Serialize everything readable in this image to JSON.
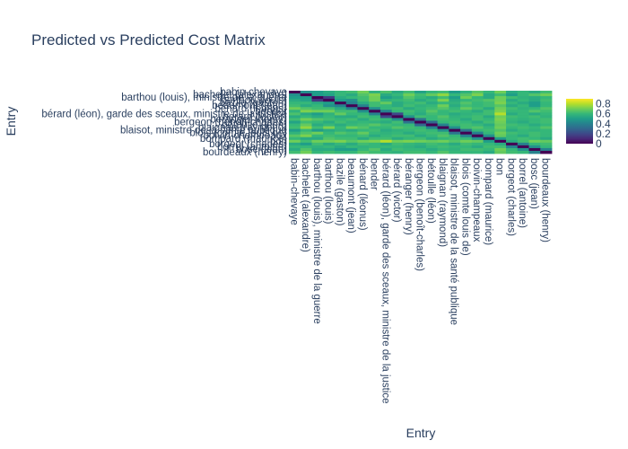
{
  "chart_data": {
    "type": "heatmap",
    "title": "Predicted vs Predicted Cost Matrix",
    "xlabel": "Entry",
    "ylabel": "Entry",
    "colorscale": "viridis",
    "zrange": [
      0,
      0.9
    ],
    "colorbar_ticks": [
      0,
      0.2,
      0.4,
      0.6,
      0.8
    ],
    "categories": [
      "babin-chevaye",
      "bachelet (alexandre)",
      "barthou (louis), ministre de la guerre",
      "barthou (louis)",
      "bazile (gaston)",
      "beaumont (jean)",
      "bénard (léonus)",
      "bender",
      "bérard (léon), garde des sceaux, ministre de la justice",
      "bérard (victor)",
      "béranger (henry)",
      "bergeon (benoît-charles)",
      "bétoulle (léon)",
      "blaignan (raymond)",
      "blaisot, ministre de la santé publique",
      "blois (comte louis de)",
      "boivin-champeaux",
      "bompard (maurice)",
      "bon",
      "borgeot (charles)",
      "borrel (antoine)",
      "bosc (jean)",
      "bourdeaux (henry)"
    ],
    "z": [
      [
        0,
        0.45,
        0.5,
        0.55,
        0.6,
        0.62,
        0.7,
        0.58,
        0.64,
        0.55,
        0.62,
        0.52,
        0.6,
        0.62,
        0.5,
        0.58,
        0.66,
        0.6,
        0.7,
        0.55,
        0.6,
        0.55,
        0.62
      ],
      [
        0.45,
        0,
        0.5,
        0.52,
        0.6,
        0.55,
        0.65,
        0.72,
        0.55,
        0.6,
        0.7,
        0.62,
        0.68,
        0.75,
        0.6,
        0.65,
        0.72,
        0.55,
        0.62,
        0.5,
        0.6,
        0.65,
        0.7
      ],
      [
        0.5,
        0.5,
        0,
        0.15,
        0.55,
        0.6,
        0.62,
        0.7,
        0.5,
        0.55,
        0.65,
        0.6,
        0.55,
        0.62,
        0.5,
        0.7,
        0.6,
        0.55,
        0.7,
        0.62,
        0.58,
        0.55,
        0.6
      ],
      [
        0.55,
        0.52,
        0.15,
        0,
        0.5,
        0.45,
        0.62,
        0.7,
        0.58,
        0.6,
        0.62,
        0.55,
        0.6,
        0.72,
        0.55,
        0.6,
        0.62,
        0.65,
        0.7,
        0.55,
        0.6,
        0.55,
        0.62
      ],
      [
        0.6,
        0.6,
        0.55,
        0.5,
        0,
        0.4,
        0.55,
        0.62,
        0.68,
        0.55,
        0.6,
        0.62,
        0.55,
        0.6,
        0.58,
        0.65,
        0.6,
        0.62,
        0.72,
        0.6,
        0.55,
        0.5,
        0.6
      ],
      [
        0.62,
        0.55,
        0.6,
        0.45,
        0.4,
        0,
        0.4,
        0.62,
        0.6,
        0.55,
        0.62,
        0.58,
        0.6,
        0.7,
        0.55,
        0.62,
        0.6,
        0.62,
        0.66,
        0.55,
        0.6,
        0.5,
        0.6
      ],
      [
        0.7,
        0.65,
        0.62,
        0.62,
        0.55,
        0.4,
        0,
        0.45,
        0.6,
        0.62,
        0.55,
        0.6,
        0.62,
        0.65,
        0.6,
        0.68,
        0.62,
        0.55,
        0.7,
        0.62,
        0.58,
        0.6,
        0.65
      ],
      [
        0.58,
        0.72,
        0.7,
        0.7,
        0.62,
        0.62,
        0.45,
        0,
        0.4,
        0.6,
        0.62,
        0.58,
        0.66,
        0.6,
        0.62,
        0.6,
        0.55,
        0.62,
        0.72,
        0.6,
        0.6,
        0.65,
        0.62
      ],
      [
        0.64,
        0.55,
        0.5,
        0.58,
        0.68,
        0.6,
        0.6,
        0.4,
        0,
        0.2,
        0.6,
        0.55,
        0.62,
        0.6,
        0.55,
        0.58,
        0.6,
        0.62,
        0.8,
        0.55,
        0.6,
        0.55,
        0.6
      ],
      [
        0.55,
        0.6,
        0.55,
        0.6,
        0.55,
        0.55,
        0.62,
        0.6,
        0.2,
        0,
        0.45,
        0.62,
        0.6,
        0.65,
        0.58,
        0.6,
        0.62,
        0.55,
        0.7,
        0.62,
        0.6,
        0.62,
        0.58
      ],
      [
        0.62,
        0.7,
        0.65,
        0.62,
        0.6,
        0.62,
        0.55,
        0.62,
        0.6,
        0.45,
        0,
        0.35,
        0.6,
        0.62,
        0.6,
        0.55,
        0.62,
        0.6,
        0.72,
        0.6,
        0.58,
        0.6,
        0.62
      ],
      [
        0.52,
        0.62,
        0.6,
        0.55,
        0.62,
        0.58,
        0.6,
        0.58,
        0.55,
        0.62,
        0.35,
        0,
        0.3,
        0.6,
        0.62,
        0.6,
        0.55,
        0.62,
        0.7,
        0.58,
        0.55,
        0.6,
        0.62
      ],
      [
        0.6,
        0.68,
        0.55,
        0.6,
        0.55,
        0.6,
        0.62,
        0.66,
        0.62,
        0.6,
        0.6,
        0.3,
        0,
        0.4,
        0.6,
        0.62,
        0.6,
        0.55,
        0.68,
        0.62,
        0.6,
        0.55,
        0.6
      ],
      [
        0.62,
        0.75,
        0.62,
        0.72,
        0.6,
        0.7,
        0.65,
        0.6,
        0.6,
        0.65,
        0.62,
        0.6,
        0.4,
        0,
        0.45,
        0.62,
        0.65,
        0.6,
        0.7,
        0.6,
        0.62,
        0.6,
        0.65
      ],
      [
        0.5,
        0.6,
        0.5,
        0.55,
        0.58,
        0.55,
        0.6,
        0.62,
        0.55,
        0.58,
        0.6,
        0.62,
        0.6,
        0.45,
        0,
        0.35,
        0.6,
        0.62,
        0.65,
        0.55,
        0.6,
        0.58,
        0.6
      ],
      [
        0.58,
        0.65,
        0.7,
        0.6,
        0.65,
        0.62,
        0.68,
        0.6,
        0.58,
        0.6,
        0.55,
        0.6,
        0.62,
        0.62,
        0.35,
        0,
        0.4,
        0.6,
        0.7,
        0.62,
        0.6,
        0.62,
        0.6
      ],
      [
        0.66,
        0.72,
        0.6,
        0.62,
        0.6,
        0.6,
        0.62,
        0.55,
        0.6,
        0.62,
        0.62,
        0.55,
        0.6,
        0.65,
        0.6,
        0.4,
        0,
        0.45,
        0.68,
        0.6,
        0.55,
        0.62,
        0.6
      ],
      [
        0.6,
        0.55,
        0.55,
        0.65,
        0.62,
        0.62,
        0.55,
        0.62,
        0.62,
        0.55,
        0.6,
        0.62,
        0.55,
        0.6,
        0.62,
        0.6,
        0.45,
        0,
        0.5,
        0.6,
        0.62,
        0.6,
        0.55
      ],
      [
        0.7,
        0.62,
        0.7,
        0.7,
        0.72,
        0.66,
        0.7,
        0.72,
        0.8,
        0.7,
        0.72,
        0.7,
        0.68,
        0.7,
        0.65,
        0.7,
        0.68,
        0.5,
        0,
        0.55,
        0.62,
        0.7,
        0.68
      ],
      [
        0.55,
        0.5,
        0.62,
        0.55,
        0.6,
        0.55,
        0.62,
        0.6,
        0.55,
        0.62,
        0.6,
        0.58,
        0.62,
        0.6,
        0.55,
        0.62,
        0.6,
        0.6,
        0.55,
        0,
        0.4,
        0.6,
        0.62
      ],
      [
        0.6,
        0.6,
        0.58,
        0.6,
        0.55,
        0.6,
        0.58,
        0.6,
        0.6,
        0.6,
        0.58,
        0.55,
        0.6,
        0.62,
        0.6,
        0.6,
        0.55,
        0.62,
        0.62,
        0.4,
        0,
        0.45,
        0.6
      ],
      [
        0.55,
        0.65,
        0.55,
        0.55,
        0.5,
        0.5,
        0.6,
        0.65,
        0.55,
        0.62,
        0.6,
        0.6,
        0.55,
        0.6,
        0.58,
        0.62,
        0.62,
        0.6,
        0.7,
        0.6,
        0.45,
        0,
        0.4
      ],
      [
        0.62,
        0.7,
        0.6,
        0.62,
        0.6,
        0.6,
        0.65,
        0.62,
        0.6,
        0.58,
        0.62,
        0.62,
        0.6,
        0.65,
        0.6,
        0.6,
        0.6,
        0.55,
        0.68,
        0.62,
        0.6,
        0.4,
        0
      ]
    ]
  }
}
